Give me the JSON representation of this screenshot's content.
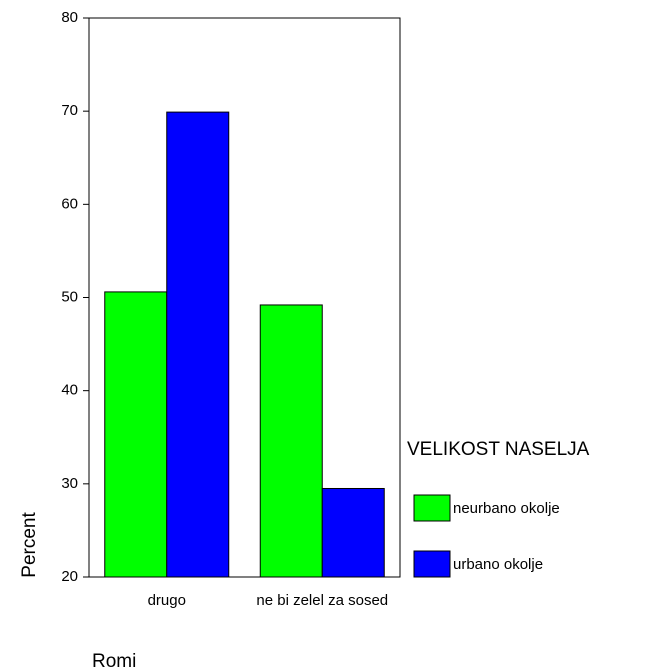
{
  "chart_data": {
    "type": "bar",
    "x_label": "Romi",
    "y_label": "Percent",
    "legend_title": "VELIKOST NASELJA",
    "legend": "right",
    "categories": [
      "drugo",
      "ne bi zelel za sosed"
    ],
    "series": [
      {
        "name": "neurbano okolje",
        "color": "#00ff00",
        "values": [
          50.6,
          49.2
        ]
      },
      {
        "name": "urbano okolje",
        "color": "#0000ff",
        "values": [
          69.9,
          29.5
        ]
      }
    ],
    "ylim": [
      20,
      80
    ],
    "yticks": [
      20,
      30,
      40,
      50,
      60,
      70,
      80
    ]
  }
}
